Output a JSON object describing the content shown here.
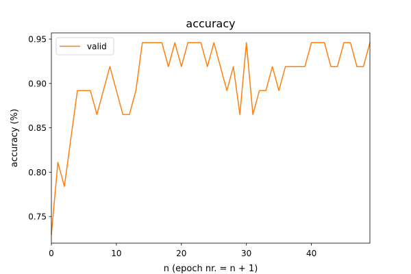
{
  "chart_data": {
    "type": "line",
    "title": "accuracy",
    "xlabel": "n (epoch nr. = n + 1)",
    "ylabel": "accuracy (%)",
    "xlim": [
      0,
      49
    ],
    "ylim": [
      0.72,
      0.957
    ],
    "xticks": [
      0,
      10,
      20,
      30,
      40
    ],
    "yticks": [
      0.75,
      0.8,
      0.85,
      0.9,
      0.95
    ],
    "ytick_labels": [
      "0.75",
      "0.80",
      "0.85",
      "0.90",
      "0.95"
    ],
    "grid": false,
    "legend_position": "top-left",
    "series": [
      {
        "name": "valid",
        "color": "#ff7f0e",
        "x": [
          0,
          1,
          2,
          3,
          4,
          5,
          6,
          7,
          8,
          9,
          10,
          11,
          12,
          13,
          14,
          15,
          16,
          17,
          18,
          19,
          20,
          21,
          22,
          23,
          24,
          25,
          26,
          27,
          28,
          29,
          30,
          31,
          32,
          33,
          34,
          35,
          36,
          37,
          38,
          39,
          40,
          41,
          42,
          43,
          44,
          45,
          46,
          47,
          48,
          49
        ],
        "values": [
          0.73,
          0.811,
          0.784,
          0.838,
          0.892,
          0.892,
          0.892,
          0.865,
          0.892,
          0.919,
          0.892,
          0.865,
          0.865,
          0.892,
          0.946,
          0.946,
          0.946,
          0.946,
          0.919,
          0.946,
          0.919,
          0.946,
          0.946,
          0.946,
          0.919,
          0.946,
          0.919,
          0.892,
          0.919,
          0.865,
          0.946,
          0.865,
          0.892,
          0.892,
          0.919,
          0.892,
          0.919,
          0.919,
          0.919,
          0.919,
          0.946,
          0.946,
          0.946,
          0.919,
          0.919,
          0.946,
          0.946,
          0.919,
          0.919,
          0.946
        ]
      }
    ]
  }
}
